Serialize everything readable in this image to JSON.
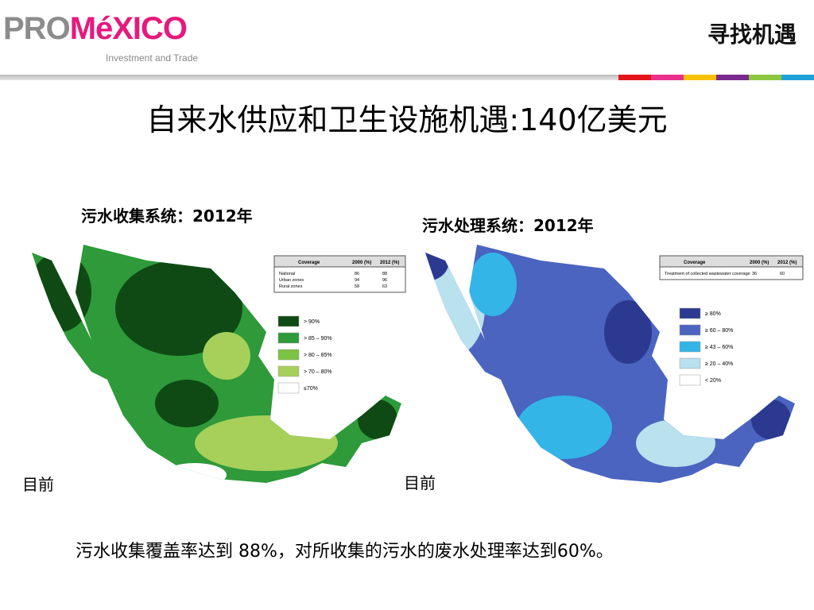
{
  "header": {
    "logo_a": "PRO",
    "logo_b": "MéXICO",
    "tagline": "Investment and Trade",
    "slogan": "寻找机遇"
  },
  "title": "自来水供应和卫生设施机遇:140亿美元",
  "maps": [
    {
      "title": "污水收集系统：2012年",
      "note": "目前",
      "table": {
        "headers": [
          "Coverage",
          "2000 (%)",
          "2012 (%)"
        ],
        "rows": [
          [
            "National",
            "86",
            "88"
          ],
          [
            "Urban zones",
            "94",
            "96"
          ],
          [
            "Rural zones",
            "58",
            "63"
          ]
        ]
      },
      "legend": [
        "> 90%",
        "> 85 – 90%",
        "> 80 – 85%",
        "> 70 – 80%",
        "≤70%"
      ]
    },
    {
      "title": "污水处理系统：2012年",
      "note": "目前",
      "table": {
        "headers": [
          "Coverage",
          "2000 (%)",
          "2012 (%)"
        ],
        "rows": [
          [
            "Treatment of collected wastewater coverage",
            "36",
            "60"
          ]
        ]
      },
      "legend": [
        "≥ 80%",
        "≥ 60 – 80%",
        "≥ 43 – 60%",
        "≥ 20 – 40%",
        "< 20%"
      ]
    }
  ],
  "summary": "污水收集覆盖率达到 88%，对所收集的污水的废水处理率达到60%。"
}
